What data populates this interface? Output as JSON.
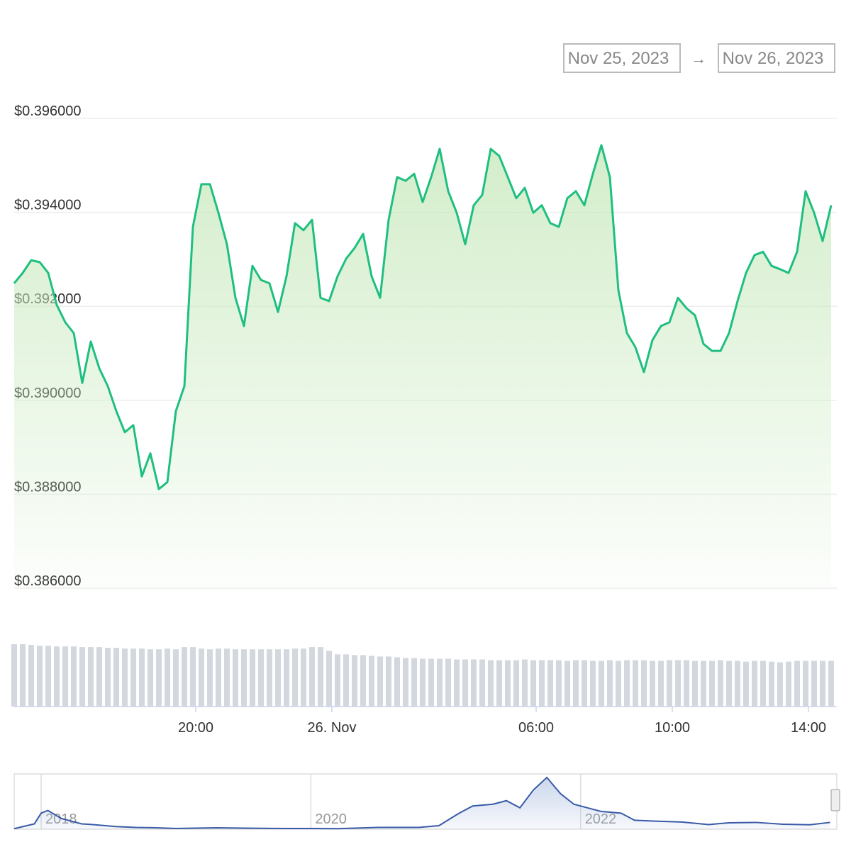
{
  "chart_data": [
    {
      "type": "line",
      "date_from": "Nov 25, 2023",
      "arrow": "→",
      "date_to": "Nov 26, 2023",
      "x": [
        "2023-11-25T14:40",
        "2023-11-25T14:55",
        "2023-11-25T15:10",
        "2023-11-25T15:25",
        "2023-11-25T15:40",
        "2023-11-25T15:55",
        "2023-11-25T16:10",
        "2023-11-25T16:25",
        "2023-11-25T16:40",
        "2023-11-25T16:55",
        "2023-11-25T17:10",
        "2023-11-25T17:25",
        "2023-11-25T17:40",
        "2023-11-25T17:55",
        "2023-11-25T18:10",
        "2023-11-25T18:25",
        "2023-11-25T18:40",
        "2023-11-25T18:55",
        "2023-11-25T19:10",
        "2023-11-25T19:25",
        "2023-11-25T19:40",
        "2023-11-25T19:55",
        "2023-11-25T20:10",
        "2023-11-25T20:25",
        "2023-11-25T20:40",
        "2023-11-25T20:55",
        "2023-11-25T21:10",
        "2023-11-25T21:25",
        "2023-11-25T21:40",
        "2023-11-25T21:55",
        "2023-11-25T22:10",
        "2023-11-25T22:25",
        "2023-11-25T22:40",
        "2023-11-25T22:55",
        "2023-11-25T23:10",
        "2023-11-25T23:25",
        "2023-11-25T23:40",
        "2023-11-25T23:55",
        "2023-11-26T00:10",
        "2023-11-26T00:25",
        "2023-11-26T00:40",
        "2023-11-26T00:55",
        "2023-11-26T01:10",
        "2023-11-26T01:25",
        "2023-11-26T01:40",
        "2023-11-26T01:55",
        "2023-11-26T02:10",
        "2023-11-26T02:25",
        "2023-11-26T02:40",
        "2023-11-26T02:55",
        "2023-11-26T03:10",
        "2023-11-26T03:25",
        "2023-11-26T03:40",
        "2023-11-26T03:55",
        "2023-11-26T04:10",
        "2023-11-26T04:25",
        "2023-11-26T04:40",
        "2023-11-26T04:55",
        "2023-11-26T05:10",
        "2023-11-26T05:25",
        "2023-11-26T05:40",
        "2023-11-26T05:55",
        "2023-11-26T06:10",
        "2023-11-26T06:25",
        "2023-11-26T06:40",
        "2023-11-26T06:55",
        "2023-11-26T07:10",
        "2023-11-26T07:25",
        "2023-11-26T07:40",
        "2023-11-26T07:55",
        "2023-11-26T08:10",
        "2023-11-26T08:25",
        "2023-11-26T08:40",
        "2023-11-26T08:55",
        "2023-11-26T09:10",
        "2023-11-26T09:25",
        "2023-11-26T09:40",
        "2023-11-26T09:55",
        "2023-11-26T10:10",
        "2023-11-26T10:25",
        "2023-11-26T10:40",
        "2023-11-26T10:55",
        "2023-11-26T11:10",
        "2023-11-26T11:25",
        "2023-11-26T11:40",
        "2023-11-26T11:55",
        "2023-11-26T12:10",
        "2023-11-26T12:25",
        "2023-11-26T12:40",
        "2023-11-26T12:55",
        "2023-11-26T13:10",
        "2023-11-26T13:25",
        "2023-11-26T13:40",
        "2023-11-26T13:55",
        "2023-11-26T14:10",
        "2023-11-26T14:25",
        "2023-11-26T14:40"
      ],
      "series": [
        {
          "color": "#1fbf80",
          "values": [
            0.39249,
            0.39271,
            0.39298,
            0.39294,
            0.39271,
            0.39203,
            0.39166,
            0.39143,
            0.39037,
            0.39125,
            0.39068,
            0.3903,
            0.38977,
            0.38932,
            0.38947,
            0.38838,
            0.38887,
            0.38811,
            0.38826,
            0.38977,
            0.3903,
            0.39369,
            0.3946,
            0.3946,
            0.39399,
            0.39332,
            0.39218,
            0.39158,
            0.39286,
            0.39256,
            0.39249,
            0.39188,
            0.39264,
            0.39377,
            0.39362,
            0.39384,
            0.39218,
            0.39211,
            0.39264,
            0.39301,
            0.39324,
            0.39354,
            0.39264,
            0.39218,
            0.39384,
            0.39475,
            0.39467,
            0.39482,
            0.39422,
            0.39475,
            0.39535,
            0.39445,
            0.39399,
            0.39332,
            0.39415,
            0.39437,
            0.39535,
            0.3952,
            0.39475,
            0.3943,
            0.39452,
            0.39399,
            0.39415,
            0.39377,
            0.39369,
            0.3943,
            0.39445,
            0.39415,
            0.39482,
            0.39543,
            0.39475,
            0.39234,
            0.39143,
            0.39113,
            0.3906,
            0.39128,
            0.39158,
            0.39166,
            0.39218,
            0.39196,
            0.39181,
            0.3912,
            0.39105,
            0.39105,
            0.39143,
            0.39211,
            0.39271,
            0.39309,
            0.39316,
            0.39286,
            0.39279,
            0.39271,
            0.39316,
            0.39445,
            0.39399,
            0.39339,
            0.39415
          ]
        }
      ],
      "volume": {
        "color": "#d3d8de",
        "values": [
          86,
          86,
          85,
          84,
          84,
          83,
          83,
          83,
          82,
          82,
          82,
          81,
          81,
          80,
          80,
          80,
          79,
          79,
          80,
          79,
          82,
          82,
          80,
          79,
          80,
          80,
          79,
          79,
          79,
          79,
          79,
          79,
          79,
          80,
          80,
          82,
          82,
          77,
          72,
          72,
          71,
          71,
          70,
          69,
          69,
          68,
          67,
          67,
          66,
          66,
          66,
          66,
          65,
          65,
          65,
          65,
          64,
          64,
          64,
          64,
          65,
          64,
          64,
          64,
          64,
          63,
          64,
          64,
          63,
          63,
          64,
          63,
          64,
          64,
          64,
          63,
          63,
          64,
          64,
          64,
          63,
          63,
          63,
          64,
          63,
          63,
          62,
          63,
          63,
          62,
          61,
          62,
          63,
          63,
          63,
          63,
          63
        ]
      },
      "xlim": [
        "2023-11-25T14:40",
        "2023-11-26T14:50"
      ],
      "xticks": [
        {
          "value": "2023-11-25T20:00",
          "label": "20:00"
        },
        {
          "value": "2023-11-26T00:00",
          "label": "26. Nov"
        },
        {
          "value": "2023-11-26T06:00",
          "label": "06:00"
        },
        {
          "value": "2023-11-26T10:00",
          "label": "10:00"
        },
        {
          "value": "2023-11-26T14:00",
          "label": "14:00"
        }
      ],
      "ylim": [
        0.386,
        0.396
      ],
      "yticks": [
        {
          "value": 0.386,
          "label": "$0.386000"
        },
        {
          "value": 0.388,
          "label": "$0.388000"
        },
        {
          "value": 0.39,
          "label": "$0.390000"
        },
        {
          "value": 0.392,
          "label": "$0.392000"
        },
        {
          "value": 0.394,
          "label": "$0.394000"
        },
        {
          "value": 0.396,
          "label": "$0.396000"
        }
      ],
      "grid": true
    },
    {
      "type": "area",
      "x": [
        2017.8,
        2017.95,
        2018.0,
        2018.05,
        2018.15,
        2018.3,
        2018.4,
        2018.55,
        2018.7,
        2018.85,
        2019.0,
        2019.3,
        2019.5,
        2019.8,
        2020.0,
        2020.2,
        2020.5,
        2020.8,
        2020.95,
        2021.1,
        2021.2,
        2021.35,
        2021.45,
        2021.55,
        2021.65,
        2021.75,
        2021.85,
        2021.95,
        2022.05,
        2022.15,
        2022.3,
        2022.4,
        2022.55,
        2022.75,
        2022.95,
        2023.1,
        2023.3,
        2023.5,
        2023.7,
        2023.85
      ],
      "series": [
        {
          "color": "#3a5ba8",
          "values": [
            0.03,
            0.3,
            0.9,
            1.05,
            0.6,
            0.3,
            0.25,
            0.15,
            0.1,
            0.08,
            0.04,
            0.08,
            0.06,
            0.04,
            0.04,
            0.03,
            0.1,
            0.1,
            0.2,
            0.9,
            1.3,
            1.4,
            1.6,
            1.2,
            2.2,
            2.9,
            2.0,
            1.4,
            1.2,
            1.0,
            0.9,
            0.5,
            0.45,
            0.4,
            0.26,
            0.36,
            0.38,
            0.28,
            0.25,
            0.38
          ]
        }
      ],
      "xlim": [
        2017.8,
        2023.9
      ],
      "xticks": [
        2018,
        2020,
        2022
      ],
      "ylim": [
        0,
        3.1
      ]
    }
  ]
}
